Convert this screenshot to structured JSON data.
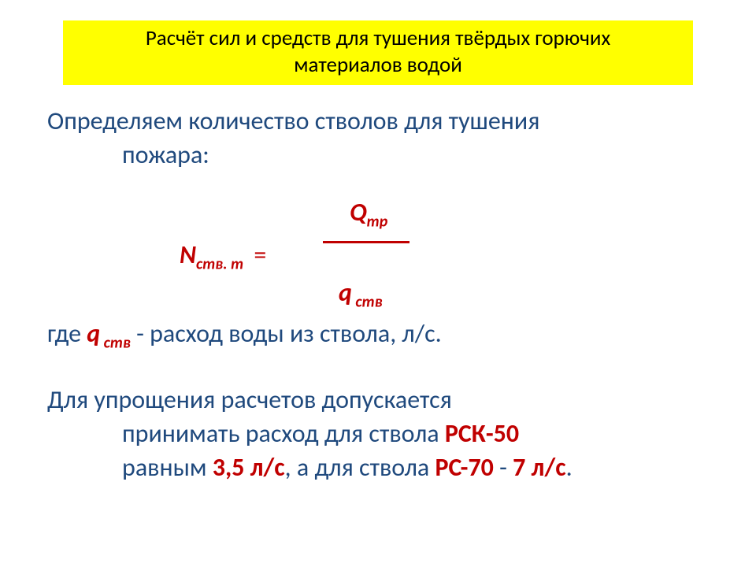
{
  "colors": {
    "title_bg": "#ffff00",
    "title_text": "#000000",
    "body_text": "#1f497d",
    "accent": "#c00000",
    "background": "#ffffff"
  },
  "fonts": {
    "title_fontsize_pt": 20,
    "body_fontsize_pt": 24,
    "sub_fontsize_pt": 15
  },
  "title": {
    "line1": "Расчёт сил и средств для тушения твёрдых горючих",
    "line2": "материалов водой"
  },
  "intro": {
    "line1": "Определяем количество стволов для тушения",
    "line2": "пожара:"
  },
  "formula": {
    "left_var": "N",
    "left_sub": "ств. т",
    "eq": "=",
    "num_var": "Q",
    "num_sub": "тр",
    "den_var": "q",
    "den_sub": " ств"
  },
  "where": {
    "prefix": "где ",
    "var": "q",
    "var_sub": " ств",
    "suffix": " - расход воды из ствола, л/с."
  },
  "note": {
    "line1": "Для упрощения расчетов допускается",
    "line2_a": "принимать расход для ствола ",
    "line2_b": "РСК-50",
    "line3_a": "равным ",
    "line3_b": "3,5 л/с",
    "line3_c": ", а для ствола ",
    "line3_d": "РС-70",
    "line3_e": " - ",
    "line3_f": "7 л/с",
    "line3_g": "."
  }
}
